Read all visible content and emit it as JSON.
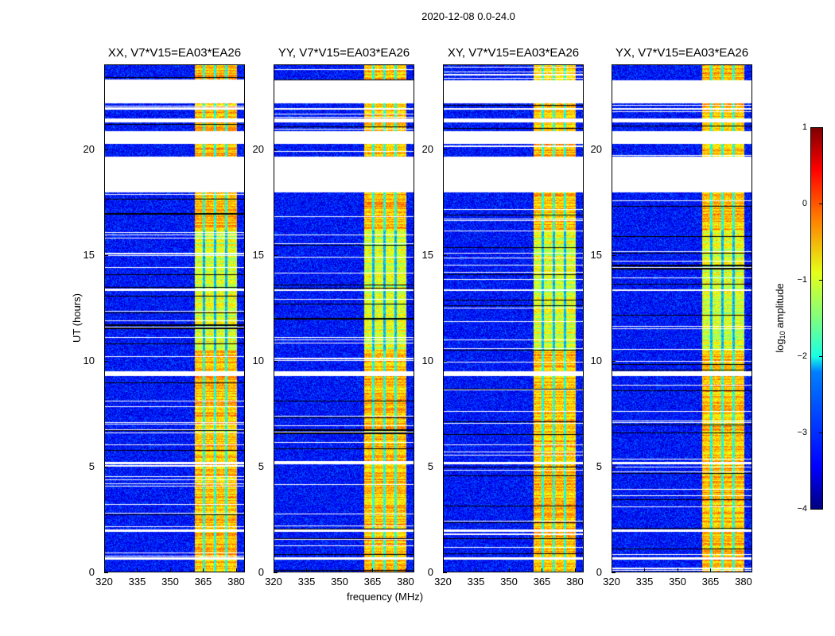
{
  "chart_data": {
    "type": "heatmap",
    "title": "2020-12-08 0.0-24.0",
    "xlabel": "frequency (MHz)",
    "ylabel": "UT (hours)",
    "xlim": [
      320,
      384
    ],
    "ylim": [
      0,
      24
    ],
    "xticks": [
      320,
      335,
      350,
      365,
      380
    ],
    "yticks": [
      0,
      5,
      10,
      15,
      20
    ],
    "panels": [
      {
        "title": "XX, V7*V15=EA03*EA26"
      },
      {
        "title": "YY, V7*V15=EA03*EA26"
      },
      {
        "title": "XY, V7*V15=EA03*EA26"
      },
      {
        "title": "YX, V7*V15=EA03*EA26"
      }
    ],
    "bright_band_mhz": [
      360.5,
      380
    ],
    "band_gaps_mhz": [
      365,
      370,
      375
    ],
    "background_log_amplitude": -3.3,
    "band_log_amplitude": [
      -1.5,
      0.2
    ],
    "flagged_ut_ranges": [
      [
        22.2,
        23.3
      ],
      [
        18.0,
        19.7
      ],
      [
        20.3,
        20.9
      ],
      [
        21.3,
        21.5
      ],
      [
        21.9,
        22.0
      ],
      [
        0.6,
        0.7
      ],
      [
        1.9,
        2.0
      ],
      [
        5.1,
        5.2
      ],
      [
        9.3,
        9.5
      ],
      [
        13.3,
        13.4
      ]
    ],
    "colorbar": {
      "label": "log",
      "label_sub": "10",
      "label_rest": " amplitude",
      "ticks": [
        "1",
        "0",
        "−1",
        "−2",
        "−3",
        "−4"
      ],
      "range": [
        -4,
        1
      ],
      "colormap": "jet"
    }
  }
}
